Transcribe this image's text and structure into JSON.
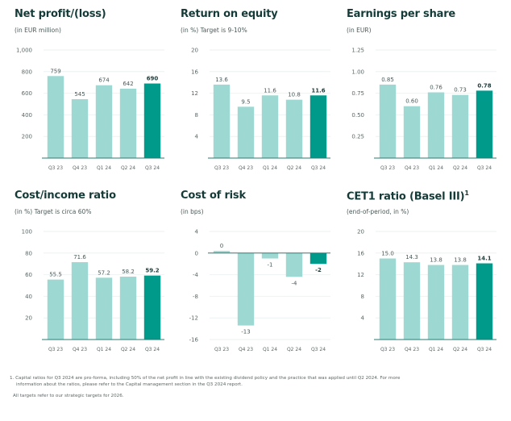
{
  "colors": {
    "bar": "#9dd9d2",
    "bar_highlight": "#009a8b",
    "axis": "#2c7a72",
    "grid": "#eef2f2"
  },
  "chart_data": [
    {
      "type": "bar",
      "title": "Net profit/(loss)",
      "title_sup": "",
      "subtitle": "(in EUR million)",
      "categories": [
        "Q3 23",
        "Q4 23",
        "Q1 24",
        "Q2 24",
        "Q3 24"
      ],
      "values": [
        759,
        545,
        674,
        642,
        690
      ],
      "value_labels": [
        "759",
        "545",
        "674",
        "642",
        "690"
      ],
      "highlight_index": 4,
      "ylim": [
        0,
        1000
      ],
      "yticks": [
        200,
        400,
        600,
        800,
        1000
      ],
      "ytick_labels": [
        "200",
        "400",
        "600",
        "800",
        "1,000"
      ],
      "grid": true,
      "xlabel": "",
      "ylabel": ""
    },
    {
      "type": "bar",
      "title": "Return on equity",
      "title_sup": "",
      "subtitle": "(in %) Target is 9-10%",
      "categories": [
        "Q3 23",
        "Q4 23",
        "Q1 24",
        "Q2 24",
        "Q3 24"
      ],
      "values": [
        13.6,
        9.5,
        11.6,
        10.8,
        11.6
      ],
      "value_labels": [
        "13.6",
        "9.5",
        "11.6",
        "10.8",
        "11.6"
      ],
      "highlight_index": 4,
      "ylim": [
        0,
        20
      ],
      "yticks": [
        4,
        8,
        12,
        16,
        20
      ],
      "ytick_labels": [
        "4",
        "8",
        "12",
        "16",
        "20"
      ],
      "grid": true,
      "xlabel": "",
      "ylabel": ""
    },
    {
      "type": "bar",
      "title": "Earnings per share",
      "title_sup": "",
      "subtitle": "(in EUR)",
      "categories": [
        "Q3 23",
        "Q4 23",
        "Q1 24",
        "Q2 24",
        "Q3 24"
      ],
      "values": [
        0.85,
        0.6,
        0.76,
        0.73,
        0.78
      ],
      "value_labels": [
        "0.85",
        "0.60",
        "0.76",
        "0.73",
        "0.78"
      ],
      "highlight_index": 4,
      "ylim": [
        0,
        1.25
      ],
      "yticks": [
        0.25,
        0.5,
        0.75,
        1.0,
        1.25
      ],
      "ytick_labels": [
        "0.25",
        "0.50",
        "0.75",
        "1.00",
        "1.25"
      ],
      "grid": true,
      "xlabel": "",
      "ylabel": ""
    },
    {
      "type": "bar",
      "title": "Cost/income ratio",
      "title_sup": "",
      "subtitle": "(in %) Target is circa 60%",
      "categories": [
        "Q3 23",
        "Q4 23",
        "Q1 24",
        "Q2 24",
        "Q3 24"
      ],
      "values": [
        55.5,
        71.6,
        57.2,
        58.2,
        59.2
      ],
      "value_labels": [
        "55.5",
        "71.6",
        "57.2",
        "58.2",
        "59.2"
      ],
      "highlight_index": 4,
      "ylim": [
        0,
        100
      ],
      "yticks": [
        20,
        40,
        60,
        80,
        100
      ],
      "ytick_labels": [
        "20",
        "40",
        "60",
        "80",
        "100"
      ],
      "grid": true,
      "xlabel": "",
      "ylabel": ""
    },
    {
      "type": "bar",
      "title": "Cost of risk",
      "title_sup": "",
      "subtitle": "(in bps)",
      "categories": [
        "Q3 23",
        "Q4 23",
        "Q1 24",
        "Q2 24",
        "Q3 24"
      ],
      "values": [
        0.4,
        -13.4,
        -1,
        -4.4,
        -2
      ],
      "value_labels": [
        "0",
        "-13",
        "-1",
        "-4",
        "-2"
      ],
      "highlight_index": 4,
      "ylim": [
        -16,
        4
      ],
      "yticks": [
        -16,
        -12,
        -8,
        -4,
        0,
        4
      ],
      "ytick_labels": [
        "-16",
        "-12",
        "-8",
        "-4",
        "0",
        "4"
      ],
      "grid": true,
      "xlabel": "",
      "ylabel": ""
    },
    {
      "type": "bar",
      "title": "CET1 ratio (Basel III)",
      "title_sup": "1",
      "subtitle": "(end-of-period, in %)",
      "categories": [
        "Q3 23",
        "Q4 23",
        "Q1 24",
        "Q2 24",
        "Q3 24"
      ],
      "values": [
        15.0,
        14.3,
        13.8,
        13.8,
        14.1
      ],
      "value_labels": [
        "15.0",
        "14.3",
        "13.8",
        "13.8",
        "14.1"
      ],
      "highlight_index": 4,
      "ylim": [
        0,
        20
      ],
      "yticks": [
        4,
        8,
        12,
        16,
        20
      ],
      "ytick_labels": [
        "4",
        "8",
        "12",
        "16",
        "20"
      ],
      "grid": true,
      "xlabel": "",
      "ylabel": ""
    }
  ],
  "footnotes": {
    "note1_line1": "1. Capital ratios for Q3 2024 are pro-forma, including 50% of the net profit in line with the existing dividend policy and the practice that was applied until Q2 2024. For more",
    "note1_line2": "information about the ratios, please refer to the Capital management section in the Q3 2024 report.",
    "targets": "All targets refer to our strategic targets for 2026."
  }
}
